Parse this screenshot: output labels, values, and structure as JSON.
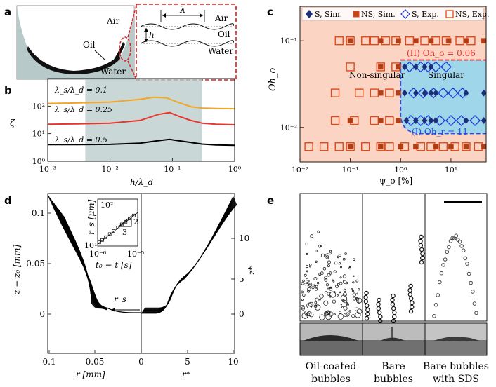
{
  "panels": {
    "a": {
      "label": "a",
      "air": "Air",
      "oil": "Oil",
      "water": "Water",
      "inset_air": "Air",
      "inset_oil": "Oil",
      "inset_water": "Water",
      "lambda": "λ",
      "h": "h"
    },
    "b": {
      "label": "b",
      "ylabel": "ζ",
      "xlabel": "h/λ_d",
      "xticks": [
        "10⁻³",
        "10⁻²",
        "10⁻¹",
        "10⁰"
      ],
      "yticks": [
        "10⁰",
        "10¹",
        "10²"
      ],
      "legend": [
        "λ_s/λ_d = 0.1",
        "λ_s/λ_d = 0.25",
        "λ_s/λ_d = 0.5"
      ]
    },
    "c": {
      "label": "c",
      "ylabel": "Oh_o",
      "xlabel": "ψ_o [%]",
      "xticks": [
        "10⁻²",
        "10⁻¹",
        "10⁰",
        "10¹"
      ],
      "yticks": [
        "10⁻²",
        "10⁻¹"
      ],
      "legend": [
        "S, Sim.",
        "NS, Sim.",
        "S, Exp.",
        "NS, Exp."
      ],
      "region_nonsingular": "Non-singular",
      "region_singular": "Singular",
      "boundary_II": "(II) Oh_o = 0.06",
      "boundary_I": "(I) Oh_r = 11"
    },
    "d": {
      "label": "d",
      "ylabel_left": "z − z₀ [mm]",
      "ylabel_right": "z*",
      "xlabel_left": "r [mm]",
      "xlabel_right": "r*",
      "yticks_left": [
        "0",
        "0.05",
        "0.1"
      ],
      "yticks_right": [
        "0",
        "5",
        "10"
      ],
      "xticks_left": [
        "0.1",
        "0.05",
        "0"
      ],
      "xticks_right": [
        "5",
        "10"
      ],
      "rs": "r_s",
      "inset_ylabel": "r_s [μm]",
      "inset_xlabel": "t₀ − t [s]",
      "inset_yticks": [
        "10¹",
        "10²"
      ],
      "inset_xticks": [
        "10⁻⁶",
        "10⁻⁵"
      ],
      "slope_num": "2",
      "slope_den": "3"
    },
    "e": {
      "label": "e",
      "captions": [
        [
          "Oil-coated",
          "bubbles"
        ],
        [
          "Bare",
          "bubbles"
        ],
        [
          "Bare bubbles",
          "with SDS"
        ]
      ]
    }
  },
  "colors": {
    "orange": "#f5a623",
    "red": "#e8352e",
    "black": "#000000",
    "navy": "#1c2f7a",
    "nsRed": "#e04a1a",
    "salmon": "#fbd4c4",
    "skyblue": "#9fd6ea",
    "grey": "#b7c9c9"
  },
  "chart_data": [
    {
      "panel": "b",
      "type": "line",
      "title": "",
      "xlabel": "h/λ_d",
      "ylabel": "ζ",
      "xscale": "log",
      "yscale": "log",
      "xlim": [
        0.001,
        1
      ],
      "ylim": [
        1,
        1000
      ],
      "shaded_x_range": [
        0.004,
        0.3
      ],
      "series": [
        {
          "name": "λ_s/λ_d = 0.1",
          "color": "#f5a623",
          "x": [
            0.001,
            0.003,
            0.01,
            0.03,
            0.05,
            0.08,
            0.12,
            0.2,
            0.3,
            0.5,
            1.0
          ],
          "y": [
            125,
            130,
            140,
            175,
            210,
            200,
            140,
            95,
            85,
            82,
            80
          ]
        },
        {
          "name": "λ_s/λ_d = 0.25",
          "color": "#e8352e",
          "x": [
            0.001,
            0.003,
            0.01,
            0.03,
            0.06,
            0.09,
            0.13,
            0.2,
            0.3,
            0.5,
            1.0
          ],
          "y": [
            22,
            22.5,
            24,
            30,
            50,
            58,
            42,
            30,
            24,
            22,
            21
          ]
        },
        {
          "name": "λ_s/λ_d = 0.5",
          "color": "#000000",
          "x": [
            0.001,
            0.003,
            0.01,
            0.03,
            0.06,
            0.09,
            0.13,
            0.2,
            0.3,
            0.5,
            1.0
          ],
          "y": [
            4.0,
            4.0,
            4.1,
            4.5,
            5.6,
            6.2,
            5.5,
            4.8,
            4.2,
            3.9,
            3.8
          ]
        }
      ]
    },
    {
      "panel": "c",
      "type": "scatter",
      "xlabel": "ψ_o [%]",
      "ylabel": "Oh_o",
      "xscale": "log",
      "yscale": "log",
      "xlim": [
        0.01,
        50
      ],
      "ylim": [
        0.004,
        0.25
      ],
      "boundary_Oh_o": 0.06,
      "boundary_psi_o": 1.0,
      "series": [
        {
          "name": "NS, Exp.",
          "marker": "open-square",
          "points": [
            [
              0.06,
              0.1
            ],
            [
              0.1,
              0.1
            ],
            [
              0.2,
              0.1
            ],
            [
              0.3,
              0.1
            ],
            [
              0.5,
              0.1
            ],
            [
              0.8,
              0.1
            ],
            [
              1.5,
              0.1
            ],
            [
              3,
              0.1
            ],
            [
              5,
              0.1
            ],
            [
              8,
              0.1
            ],
            [
              15,
              0.1
            ],
            [
              25,
              0.1
            ],
            [
              0.1,
              0.05
            ],
            [
              0.4,
              0.05
            ],
            [
              0.8,
              0.05
            ],
            [
              0.05,
              0.025
            ],
            [
              0.15,
              0.025
            ],
            [
              0.3,
              0.025
            ],
            [
              0.6,
              0.025
            ],
            [
              0.05,
              0.012
            ],
            [
              0.12,
              0.012
            ],
            [
              0.3,
              0.012
            ],
            [
              0.6,
              0.012
            ],
            [
              0.015,
              0.006
            ],
            [
              0.03,
              0.006
            ],
            [
              0.06,
              0.006
            ],
            [
              0.1,
              0.006
            ],
            [
              0.2,
              0.006
            ],
            [
              0.4,
              0.006
            ],
            [
              0.6,
              0.006
            ],
            [
              1.2,
              0.006
            ],
            [
              2.5,
              0.006
            ],
            [
              4,
              0.006
            ],
            [
              7,
              0.006
            ],
            [
              12,
              0.006
            ],
            [
              20,
              0.006
            ],
            [
              35,
              0.006
            ]
          ]
        },
        {
          "name": "NS, Sim.",
          "marker": "filled-square",
          "points": [
            [
              0.1,
              0.1
            ],
            [
              0.4,
              0.1
            ],
            [
              0.9,
              0.1
            ],
            [
              2,
              0.1
            ],
            [
              4,
              0.1
            ],
            [
              9,
              0.1
            ],
            [
              20,
              0.1
            ],
            [
              45,
              0.1
            ],
            [
              0.4,
              0.05
            ],
            [
              0.9,
              0.05
            ],
            [
              0.4,
              0.025
            ],
            [
              0.9,
              0.025
            ],
            [
              0.1,
              0.012
            ],
            [
              0.4,
              0.012
            ],
            [
              0.9,
              0.012
            ],
            [
              0.1,
              0.006
            ],
            [
              0.4,
              0.006
            ],
            [
              1,
              0.006
            ],
            [
              2,
              0.006
            ],
            [
              5,
              0.006
            ],
            [
              10,
              0.006
            ],
            [
              20,
              0.006
            ],
            [
              45,
              0.006
            ]
          ]
        },
        {
          "name": "S, Exp.",
          "marker": "open-diamond",
          "points": [
            [
              1.5,
              0.05
            ],
            [
              2.5,
              0.05
            ],
            [
              3.5,
              0.05
            ],
            [
              5,
              0.05
            ],
            [
              8,
              0.05
            ],
            [
              1.8,
              0.025
            ],
            [
              2.8,
              0.025
            ],
            [
              4.5,
              0.025
            ],
            [
              7,
              0.025
            ],
            [
              11,
              0.025
            ],
            [
              17,
              0.025
            ],
            [
              1.6,
              0.012
            ],
            [
              2.5,
              0.012
            ],
            [
              3.5,
              0.012
            ],
            [
              6,
              0.012
            ],
            [
              10,
              0.012
            ],
            [
              16,
              0.012
            ],
            [
              30,
              0.012
            ]
          ]
        },
        {
          "name": "S, Sim.",
          "marker": "filled-diamond",
          "points": [
            [
              1.2,
              0.05
            ],
            [
              2,
              0.05
            ],
            [
              3,
              0.05
            ],
            [
              4,
              0.05
            ],
            [
              1.2,
              0.025
            ],
            [
              2,
              0.025
            ],
            [
              3,
              0.025
            ],
            [
              4,
              0.025
            ],
            [
              5,
              0.025
            ],
            [
              20,
              0.025
            ],
            [
              45,
              0.025
            ],
            [
              1.3,
              0.012
            ],
            [
              2,
              0.012
            ],
            [
              3,
              0.012
            ],
            [
              4,
              0.012
            ],
            [
              5,
              0.012
            ],
            [
              20,
              0.012
            ],
            [
              45,
              0.012
            ]
          ]
        }
      ]
    },
    {
      "panel": "d-inset",
      "type": "scatter",
      "xlabel": "t₀ − t [s]",
      "ylabel": "r_s [μm]",
      "xscale": "log",
      "yscale": "log",
      "xlim": [
        1e-06,
        1e-05
      ],
      "ylim": [
        10,
        100
      ],
      "slope": "2/3",
      "points": [
        [
          1.1e-06,
          12
        ],
        [
          1.3e-06,
          13.5
        ],
        [
          1.6e-06,
          15.5
        ],
        [
          2e-06,
          18
        ],
        [
          2.5e-06,
          21
        ],
        [
          3.2e-06,
          25
        ],
        [
          4e-06,
          29
        ],
        [
          5e-06,
          33
        ],
        [
          6.3e-06,
          39
        ],
        [
          8e-06,
          45
        ]
      ]
    }
  ]
}
